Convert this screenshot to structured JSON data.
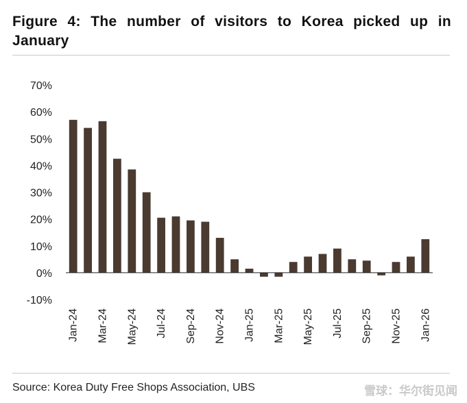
{
  "header": {
    "title": "Figure 4: The number of visitors to Korea picked up in January"
  },
  "footer": {
    "source": "Source: Korea Duty Free Shops Association, UBS",
    "watermark": "雪球：华尔街见闻"
  },
  "chart_data": {
    "type": "bar",
    "categories": [
      "Jan-24",
      "Feb-24",
      "Mar-24",
      "Apr-24",
      "May-24",
      "Jun-24",
      "Jul-24",
      "Aug-24",
      "Sep-24",
      "Oct-24",
      "Nov-24",
      "Dec-24",
      "Jan-25",
      "Feb-25",
      "Mar-25",
      "Apr-25",
      "May-25",
      "Jun-25",
      "Jul-25",
      "Aug-25",
      "Sep-25",
      "Oct-25",
      "Nov-25",
      "Dec-25",
      "Jan-26"
    ],
    "x_tick_labels": [
      "Jan-24",
      "Mar-24",
      "May-24",
      "Jul-24",
      "Sep-24",
      "Nov-24",
      "Jan-25",
      "Mar-25",
      "May-25",
      "Jul-25",
      "Sep-25",
      "Nov-25",
      "Jan-26"
    ],
    "values": [
      57.0,
      54.0,
      56.5,
      42.5,
      38.5,
      30.0,
      20.5,
      21.0,
      19.5,
      19.0,
      13.0,
      5.0,
      1.5,
      -1.5,
      -1.5,
      4.0,
      6.0,
      7.0,
      9.0,
      5.0,
      4.5,
      -1.0,
      4.0,
      6.0,
      12.5
    ],
    "ylim": [
      -10,
      70
    ],
    "y_ticks": [
      -10,
      0,
      10,
      20,
      30,
      40,
      50,
      60,
      70
    ],
    "y_tick_labels": [
      "-10%",
      "0%",
      "10%",
      "20%",
      "30%",
      "40%",
      "50%",
      "60%",
      "70%"
    ],
    "bar_color": "#4a3a30",
    "xlabel": "",
    "ylabel": "",
    "grid": false,
    "legend": "none"
  }
}
